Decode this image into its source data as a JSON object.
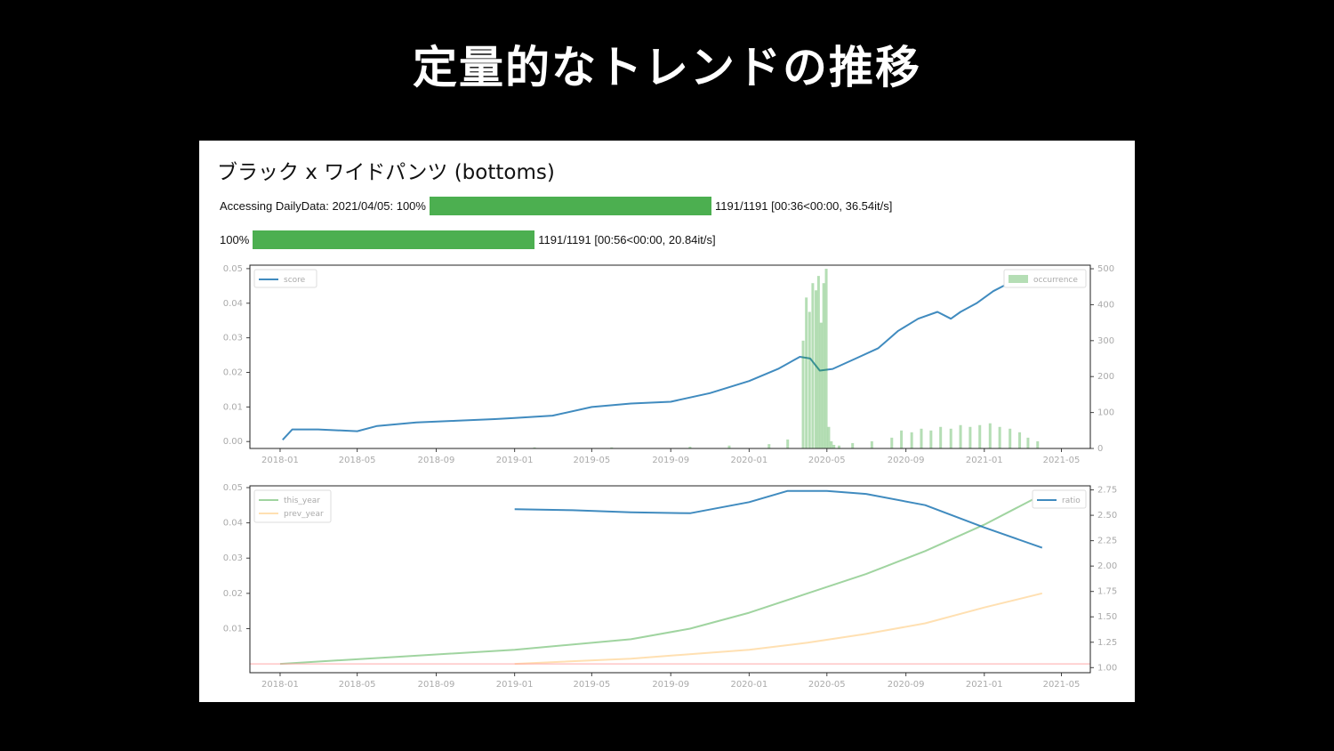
{
  "slide": {
    "title": "定量的なトレンドの推移"
  },
  "panel": {
    "title": "ブラック x ワイドパンツ (bottoms)"
  },
  "progress": [
    {
      "prefix": "Accessing DailyData: 2021/04/05: 100%",
      "fraction": 1.0,
      "suffix": "1191/1191 [00:36<00:00, 36.54it/s]"
    },
    {
      "prefix": "100%",
      "fraction": 1.0,
      "suffix": "1191/1191 [00:56<00:00, 20.84it/s]"
    }
  ],
  "colors": {
    "score": "#1f77b4",
    "occurrence": "#2ca02c",
    "this_year": "#2ca02c",
    "prev_year": "#ffbb55",
    "ratio": "#1f77b4",
    "baseline": "#ff9f9f",
    "progress": "#4caf50"
  },
  "chart_data": [
    {
      "type": "line",
      "x_ticks": [
        "2018-01",
        "2018-05",
        "2018-09",
        "2019-01",
        "2019-05",
        "2019-09",
        "2020-01",
        "2020-05",
        "2020-09",
        "2021-01",
        "2021-05"
      ],
      "xlim": [
        "2017-11-15",
        "2021-06-15"
      ],
      "y_left_ticks": [
        "0.00",
        "0.01",
        "0.02",
        "0.03",
        "0.04",
        "0.05"
      ],
      "ylim_left": [
        -0.002,
        0.051
      ],
      "y_right_ticks": [
        "0",
        "100",
        "200",
        "300",
        "400",
        "500"
      ],
      "ylim_right": [
        0,
        510
      ],
      "legend_left": "top-left",
      "legend_right": "top-right",
      "series": [
        {
          "name": "score",
          "axis": "left",
          "x": [
            "2018-01-05",
            "2018-01-20",
            "2018-03-01",
            "2018-05-01",
            "2018-06-01",
            "2018-08-01",
            "2018-10-01",
            "2018-12-01",
            "2019-01-01",
            "2019-03-01",
            "2019-05-01",
            "2019-07-01",
            "2019-09-01",
            "2019-11-01",
            "2020-01-01",
            "2020-02-15",
            "2020-03-20",
            "2020-04-05",
            "2020-04-20",
            "2020-05-10",
            "2020-06-15",
            "2020-07-20",
            "2020-08-20",
            "2020-09-20",
            "2020-10-20",
            "2020-11-10",
            "2020-11-25",
            "2020-12-20",
            "2021-01-15",
            "2021-02-05"
          ],
          "y": [
            0.0005,
            0.0035,
            0.0035,
            0.003,
            0.0045,
            0.0055,
            0.006,
            0.0065,
            0.0068,
            0.0075,
            0.01,
            0.011,
            0.0115,
            0.014,
            0.0175,
            0.021,
            0.0245,
            0.024,
            0.0205,
            0.021,
            0.024,
            0.027,
            0.032,
            0.0355,
            0.0375,
            0.0355,
            0.0375,
            0.04,
            0.0435,
            0.0455
          ]
        },
        {
          "name": "occurrence",
          "axis": "right",
          "kind": "bar",
          "x": [
            "2019-02-01",
            "2019-06-01",
            "2019-10-01",
            "2019-12-01",
            "2020-02-01",
            "2020-03-01",
            "2020-03-25",
            "2020-03-30",
            "2020-04-04",
            "2020-04-09",
            "2020-04-14",
            "2020-04-18",
            "2020-04-22",
            "2020-04-26",
            "2020-04-30",
            "2020-05-04",
            "2020-05-08",
            "2020-05-12",
            "2020-05-20",
            "2020-06-10",
            "2020-07-10",
            "2020-08-10",
            "2020-08-25",
            "2020-09-10",
            "2020-09-25",
            "2020-10-10",
            "2020-10-25",
            "2020-11-10",
            "2020-11-25",
            "2020-12-10",
            "2020-12-25",
            "2021-01-10",
            "2021-01-25",
            "2021-02-10",
            "2021-02-25",
            "2021-03-10",
            "2021-03-25"
          ],
          "y": [
            3,
            3,
            5,
            8,
            12,
            25,
            300,
            420,
            380,
            460,
            440,
            480,
            350,
            460,
            500,
            60,
            20,
            10,
            8,
            15,
            20,
            30,
            50,
            45,
            55,
            50,
            60,
            55,
            65,
            60,
            65,
            70,
            60,
            55,
            45,
            30,
            20
          ]
        }
      ]
    },
    {
      "type": "line",
      "x_ticks": [
        "2018-01",
        "2018-05",
        "2018-09",
        "2019-01",
        "2019-05",
        "2019-09",
        "2020-01",
        "2020-05",
        "2020-09",
        "2021-01",
        "2021-05"
      ],
      "xlim": [
        "2017-11-15",
        "2021-06-15"
      ],
      "y_left_ticks": [
        "0.01",
        "0.02",
        "0.03",
        "0.04",
        "0.05"
      ],
      "ylim_left": [
        -0.0025,
        0.0505
      ],
      "y_right_ticks": [
        "1.00",
        "1.25",
        "1.50",
        "1.75",
        "2.00",
        "2.25",
        "2.50",
        "2.75"
      ],
      "ylim_right": [
        0.95,
        2.79
      ],
      "legend_left": "top-left",
      "legend_right": "top-right",
      "series": [
        {
          "name": "this_year",
          "axis": "left",
          "x": [
            "2018-01-01",
            "2018-07-01",
            "2019-01-01",
            "2019-07-01",
            "2019-10-01",
            "2020-01-01",
            "2020-04-01",
            "2020-07-01",
            "2020-10-01",
            "2021-01-01",
            "2021-04-01"
          ],
          "y": [
            0.0,
            0.002,
            0.004,
            0.007,
            0.01,
            0.0145,
            0.02,
            0.0255,
            0.032,
            0.0395,
            0.048
          ]
        },
        {
          "name": "prev_year",
          "axis": "left",
          "x": [
            "2019-01-01",
            "2019-07-01",
            "2020-01-01",
            "2020-04-01",
            "2020-07-01",
            "2020-10-01",
            "2021-01-01",
            "2021-04-01"
          ],
          "y": [
            0.0,
            0.0015,
            0.004,
            0.006,
            0.0085,
            0.0115,
            0.016,
            0.02
          ]
        },
        {
          "name": "baseline",
          "axis": "left",
          "x": [
            "2017-11-15",
            "2021-06-15"
          ],
          "y": [
            0.0,
            0.0
          ]
        },
        {
          "name": "ratio",
          "axis": "right",
          "x": [
            "2019-01-01",
            "2019-04-01",
            "2019-07-01",
            "2019-10-01",
            "2020-01-01",
            "2020-03-01",
            "2020-05-01",
            "2020-07-01",
            "2020-10-01",
            "2021-01-01",
            "2021-04-01"
          ],
          "y": [
            2.56,
            2.55,
            2.53,
            2.52,
            2.63,
            2.74,
            2.74,
            2.71,
            2.6,
            2.38,
            2.18
          ]
        }
      ]
    }
  ]
}
